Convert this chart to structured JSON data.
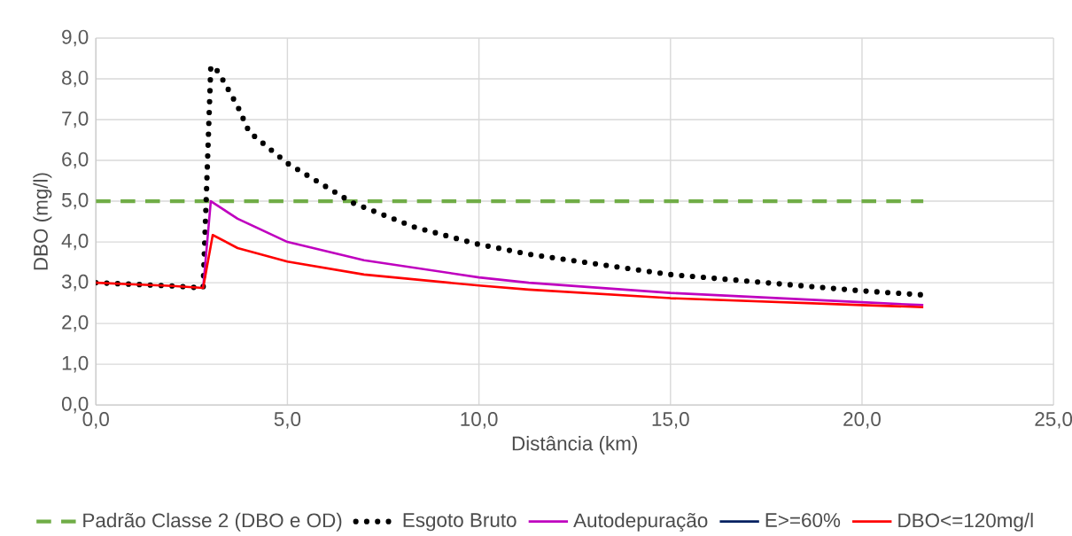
{
  "chart_data": {
    "type": "line",
    "xlabel": "Distância (km)",
    "ylabel": "DBO (mg/l)",
    "xlim": [
      0,
      25
    ],
    "ylim": [
      0,
      9
    ],
    "xticks": [
      {
        "value": 0,
        "label": "0,0"
      },
      {
        "value": 5,
        "label": "5,0"
      },
      {
        "value": 10,
        "label": "10,0"
      },
      {
        "value": 15,
        "label": "15,0"
      },
      {
        "value": 20,
        "label": "20,0"
      },
      {
        "value": 25,
        "label": "25,0"
      }
    ],
    "yticks": [
      {
        "value": 0,
        "label": "0,0"
      },
      {
        "value": 1,
        "label": "1,0"
      },
      {
        "value": 2,
        "label": "2,0"
      },
      {
        "value": 3,
        "label": "3,0"
      },
      {
        "value": 4,
        "label": "4,0"
      },
      {
        "value": 5,
        "label": "5,0"
      },
      {
        "value": 6,
        "label": "6,0"
      },
      {
        "value": 7,
        "label": "7,0"
      },
      {
        "value": 8,
        "label": "8,0"
      },
      {
        "value": 9,
        "label": "9,0"
      }
    ],
    "grid": true,
    "legend": "bottom",
    "marker": "none",
    "series": [
      {
        "name": "Padrão Classe 2 (DBO e OD)",
        "color": "#70ad47",
        "line_style": "dashed",
        "x": [
          0,
          21.6
        ],
        "values": [
          5,
          5
        ]
      },
      {
        "name": "Esgoto Bruto",
        "color": "#000000",
        "line_style": "dotted",
        "x": [
          0,
          1,
          2,
          2.8,
          3.0,
          3.1,
          3.3,
          3.7,
          4.0,
          5.0,
          6.7,
          8.3,
          9.9,
          11.3,
          15,
          20,
          21.6
        ],
        "values": [
          3.0,
          2.96,
          2.92,
          2.87,
          8.3,
          8.3,
          8.0,
          7.33,
          6.7,
          5.93,
          4.96,
          4.37,
          3.96,
          3.7,
          3.2,
          2.8,
          2.7
        ]
      },
      {
        "name": "Autodepuração",
        "color": "#bf00bf",
        "line_style": "solid",
        "x": [
          2.8,
          3.0,
          3.7,
          5.0,
          7.0,
          10,
          11.3,
          15,
          20,
          21.6
        ],
        "values": [
          2.87,
          5.0,
          4.57,
          4.0,
          3.55,
          3.13,
          3.0,
          2.75,
          2.52,
          2.45
        ]
      },
      {
        "name": "E>=60%",
        "color": "#002060",
        "line_style": "solid"
      },
      {
        "name": "DBO<=120mg/l",
        "color": "#ff0000",
        "line_style": "solid",
        "x": [
          0,
          1,
          2,
          2.8,
          3.05,
          3.7,
          5.0,
          7.0,
          10,
          11.3,
          15,
          20,
          21.6
        ],
        "values": [
          3.0,
          2.96,
          2.92,
          2.87,
          4.17,
          3.85,
          3.52,
          3.2,
          2.93,
          2.83,
          2.62,
          2.45,
          2.4
        ]
      }
    ]
  }
}
